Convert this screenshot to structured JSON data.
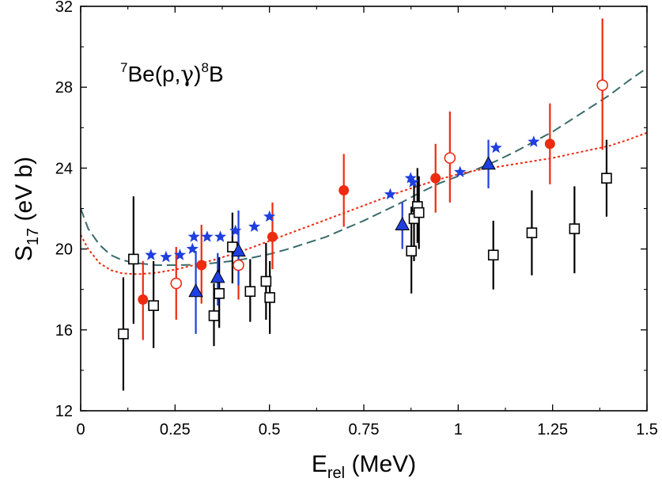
{
  "chart_data": {
    "type": "scatter",
    "xlim": [
      0,
      1.5
    ],
    "ylim": [
      12,
      32
    ],
    "xticks": [
      {
        "v": 0,
        "label": "0"
      },
      {
        "v": 0.25,
        "label": "0.25"
      },
      {
        "v": 0.5,
        "label": "0.5"
      },
      {
        "v": 0.75,
        "label": "0.75"
      },
      {
        "v": 1,
        "label": "1"
      },
      {
        "v": 1.25,
        "label": "1.25"
      },
      {
        "v": 1.5,
        "label": "1.5"
      }
    ],
    "yticks": [
      {
        "v": 12,
        "label": "12"
      },
      {
        "v": 16,
        "label": "16"
      },
      {
        "v": 20,
        "label": "20"
      },
      {
        "v": 24,
        "label": "24"
      },
      {
        "v": 28,
        "label": "28"
      },
      {
        "v": 32,
        "label": "32"
      }
    ],
    "xlabel": {
      "main": "E",
      "sub": "rel",
      "rest": " (MeV)"
    },
    "ylabel": {
      "main": "S",
      "sub": "17",
      "rest": " (eV b)"
    },
    "annotation": {
      "sup1": "7",
      "part1": "Be(p,",
      "gamma": "γ",
      "part2": ")",
      "sup2": "8",
      "part3": "B"
    },
    "grid": false,
    "colors": {
      "red": "#ee2a10",
      "blue": "#1f3fe0",
      "black": "#000000",
      "teal": "#3a6b6b"
    },
    "series": [
      {
        "marker": "open-square",
        "color": "#000000",
        "points": [
          {
            "x": 0.113,
            "y": 15.8,
            "lo": 13.0,
            "hi": 18.6
          },
          {
            "x": 0.14,
            "y": 19.5,
            "lo": 16.3,
            "hi": 22.6
          },
          {
            "x": 0.193,
            "y": 17.2,
            "lo": 15.1,
            "hi": 19.4
          },
          {
            "x": 0.353,
            "y": 16.7,
            "lo": 15.2,
            "hi": 18.3
          },
          {
            "x": 0.367,
            "y": 17.8,
            "lo": 16.1,
            "hi": 19.6
          },
          {
            "x": 0.402,
            "y": 20.1,
            "lo": 18.3,
            "hi": 21.8
          },
          {
            "x": 0.449,
            "y": 17.9,
            "lo": 16.4,
            "hi": 19.5
          },
          {
            "x": 0.491,
            "y": 18.4,
            "lo": 16.5,
            "hi": 20.3
          },
          {
            "x": 0.501,
            "y": 17.6,
            "lo": 15.8,
            "hi": 19.4
          },
          {
            "x": 0.876,
            "y": 19.9,
            "lo": 17.8,
            "hi": 22.1
          },
          {
            "x": 0.883,
            "y": 21.5,
            "lo": 19.4,
            "hi": 23.4
          },
          {
            "x": 0.892,
            "y": 22.1,
            "lo": 20.3,
            "hi": 24.0
          },
          {
            "x": 0.896,
            "y": 21.8,
            "lo": 20.0,
            "hi": 23.6
          },
          {
            "x": 1.093,
            "y": 19.7,
            "lo": 18.0,
            "hi": 21.4
          },
          {
            "x": 1.195,
            "y": 20.8,
            "lo": 18.7,
            "hi": 22.9
          },
          {
            "x": 1.308,
            "y": 21.0,
            "lo": 18.8,
            "hi": 23.1
          },
          {
            "x": 1.393,
            "y": 23.5,
            "lo": 21.6,
            "hi": 25.4
          }
        ]
      },
      {
        "marker": "filled-circle",
        "color": "#ee2a10",
        "points": [
          {
            "x": 0.165,
            "y": 17.5,
            "lo": 15.5,
            "hi": 19.4
          },
          {
            "x": 0.32,
            "y": 19.2,
            "lo": 17.3,
            "hi": 21.2
          },
          {
            "x": 0.508,
            "y": 20.6,
            "lo": 19.0,
            "hi": 22.3
          },
          {
            "x": 0.697,
            "y": 22.9,
            "lo": 21.1,
            "hi": 24.7
          },
          {
            "x": 0.94,
            "y": 23.5,
            "lo": 21.8,
            "hi": 25.2
          },
          {
            "x": 1.243,
            "y": 25.2,
            "lo": 23.2,
            "hi": 27.2
          }
        ]
      },
      {
        "marker": "open-circle",
        "color": "#ee2a10",
        "points": [
          {
            "x": 0.253,
            "y": 18.3,
            "lo": 16.5,
            "hi": 20.1
          },
          {
            "x": 0.418,
            "y": 19.2,
            "lo": 17.5,
            "hi": 20.9
          },
          {
            "x": 0.978,
            "y": 24.5,
            "lo": 22.3,
            "hi": 26.8
          },
          {
            "x": 1.382,
            "y": 28.1,
            "lo": 24.9,
            "hi": 31.4
          }
        ]
      },
      {
        "marker": "filled-triangle",
        "color": "#1f3fe0",
        "points": [
          {
            "x": 0.305,
            "y": 17.9,
            "lo": 15.8,
            "hi": 19.9
          },
          {
            "x": 0.363,
            "y": 18.6,
            "lo": 17.2,
            "hi": 19.8
          },
          {
            "x": 0.418,
            "y": 19.9,
            "lo": 18.2,
            "hi": 21.9
          },
          {
            "x": 0.852,
            "y": 21.2,
            "lo": 20.0,
            "hi": 22.3
          },
          {
            "x": 1.08,
            "y": 24.2,
            "lo": 23.0,
            "hi": 25.4
          }
        ]
      },
      {
        "marker": "filled-star",
        "color": "#1f3fe0",
        "points": [
          {
            "x": 0.186,
            "y": 19.7
          },
          {
            "x": 0.226,
            "y": 19.6
          },
          {
            "x": 0.263,
            "y": 19.7
          },
          {
            "x": 0.296,
            "y": 20.0
          },
          {
            "x": 0.3,
            "y": 20.6
          },
          {
            "x": 0.335,
            "y": 20.6
          },
          {
            "x": 0.37,
            "y": 20.6
          },
          {
            "x": 0.41,
            "y": 20.9
          },
          {
            "x": 0.46,
            "y": 21.1
          },
          {
            "x": 0.5,
            "y": 21.6
          },
          {
            "x": 0.82,
            "y": 22.7
          },
          {
            "x": 0.874,
            "y": 23.5
          },
          {
            "x": 0.88,
            "y": 23.3
          },
          {
            "x": 1.005,
            "y": 23.8
          },
          {
            "x": 1.1,
            "y": 25.0
          },
          {
            "x": 1.2,
            "y": 25.3
          }
        ]
      }
    ],
    "curves": [
      {
        "style": "dashed",
        "color": "#3a6b6b",
        "points": [
          [
            0,
            22.0
          ],
          [
            0.02,
            21.0
          ],
          [
            0.05,
            20.2
          ],
          [
            0.08,
            19.7
          ],
          [
            0.11,
            19.45
          ],
          [
            0.15,
            19.3
          ],
          [
            0.2,
            19.2
          ],
          [
            0.25,
            19.2
          ],
          [
            0.3,
            19.22
          ],
          [
            0.35,
            19.3
          ],
          [
            0.4,
            19.4
          ],
          [
            0.45,
            19.55
          ],
          [
            0.5,
            19.75
          ],
          [
            0.55,
            20.0
          ],
          [
            0.6,
            20.3
          ],
          [
            0.65,
            20.6
          ],
          [
            0.7,
            21.0
          ],
          [
            0.75,
            21.4
          ],
          [
            0.8,
            21.85
          ],
          [
            0.85,
            22.3
          ],
          [
            0.9,
            22.8
          ],
          [
            0.95,
            23.25
          ],
          [
            1.0,
            23.6
          ],
          [
            1.05,
            23.95
          ],
          [
            1.1,
            24.35
          ],
          [
            1.15,
            24.8
          ],
          [
            1.2,
            25.3
          ],
          [
            1.25,
            25.8
          ],
          [
            1.3,
            26.4
          ],
          [
            1.35,
            27.0
          ],
          [
            1.4,
            27.6
          ],
          [
            1.45,
            28.3
          ],
          [
            1.5,
            28.95
          ]
        ]
      },
      {
        "style": "dotted",
        "color": "#ee2a10",
        "points": [
          [
            0,
            20.7
          ],
          [
            0.02,
            20.0
          ],
          [
            0.05,
            19.3
          ],
          [
            0.08,
            18.95
          ],
          [
            0.11,
            18.8
          ],
          [
            0.15,
            18.75
          ],
          [
            0.2,
            18.82
          ],
          [
            0.25,
            18.98
          ],
          [
            0.3,
            19.2
          ],
          [
            0.35,
            19.45
          ],
          [
            0.4,
            19.73
          ],
          [
            0.45,
            20.05
          ],
          [
            0.5,
            20.4
          ],
          [
            0.55,
            20.75
          ],
          [
            0.6,
            21.1
          ],
          [
            0.65,
            21.45
          ],
          [
            0.7,
            21.8
          ],
          [
            0.75,
            22.15
          ],
          [
            0.8,
            22.5
          ],
          [
            0.85,
            22.85
          ],
          [
            0.9,
            23.15
          ],
          [
            0.95,
            23.45
          ],
          [
            1.0,
            23.7
          ],
          [
            1.05,
            23.9
          ],
          [
            1.1,
            24.05
          ],
          [
            1.15,
            24.2
          ],
          [
            1.2,
            24.35
          ],
          [
            1.25,
            24.5
          ],
          [
            1.3,
            24.7
          ],
          [
            1.35,
            24.9
          ],
          [
            1.4,
            25.1
          ],
          [
            1.45,
            25.4
          ],
          [
            1.5,
            25.75
          ]
        ]
      }
    ]
  }
}
